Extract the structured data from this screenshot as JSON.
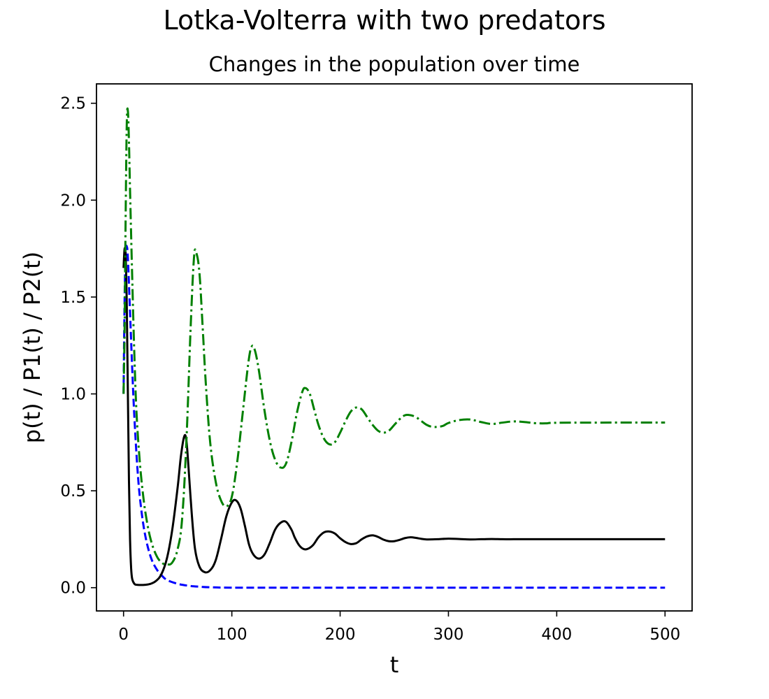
{
  "chart_data": {
    "type": "line",
    "suptitle": "Lotka-Volterra with two predators",
    "title": "Changes in the population over time",
    "xlabel": "t",
    "ylabel": "p(t) / P1(t) / P2(t)",
    "xlim": [
      -25,
      525
    ],
    "ylim": [
      -0.12,
      2.6
    ],
    "xticks": [
      0,
      100,
      200,
      300,
      400,
      500
    ],
    "yticks": [
      0.0,
      0.5,
      1.0,
      1.5,
      2.0,
      2.5
    ],
    "xtick_labels": [
      "0",
      "100",
      "200",
      "300",
      "400",
      "500"
    ],
    "ytick_labels": [
      "0.0",
      "0.5",
      "1.0",
      "1.5",
      "2.0",
      "2.5"
    ],
    "legend": "none",
    "grid": false,
    "series": [
      {
        "color": "#0000ff",
        "linestyle": "dashed",
        "x": [
          0,
          1,
          2,
          3,
          4,
          6,
          8,
          10,
          13,
          16,
          20,
          25,
          30,
          35,
          40,
          50,
          60,
          70,
          80,
          100,
          150,
          200,
          300,
          400,
          500
        ],
        "y": [
          1.0,
          1.5,
          1.73,
          1.76,
          1.7,
          1.42,
          1.13,
          0.88,
          0.6,
          0.42,
          0.27,
          0.16,
          0.1,
          0.065,
          0.04,
          0.02,
          0.01,
          0.005,
          0.002,
          0.0,
          0.0,
          0.0,
          0.0,
          0.0,
          0.0
        ]
      },
      {
        "color": "#000000",
        "linestyle": "solid",
        "x": [
          0,
          1,
          2,
          3,
          4,
          5,
          6,
          7,
          8,
          10,
          12,
          15,
          20,
          25,
          30,
          35,
          40,
          45,
          50,
          53,
          56,
          58,
          60,
          63,
          66,
          70,
          75,
          80,
          85,
          90,
          95,
          100,
          104,
          108,
          112,
          116,
          120,
          125,
          130,
          135,
          140,
          145,
          150,
          155,
          158,
          162,
          166,
          170,
          175,
          180,
          185,
          190,
          195,
          200,
          205,
          210,
          215,
          220,
          225,
          230,
          235,
          240,
          245,
          250,
          255,
          260,
          265,
          270,
          275,
          280,
          290,
          300,
          310,
          320,
          330,
          340,
          350,
          360,
          370,
          380,
          390,
          400,
          450,
          500
        ],
        "y": [
          1.65,
          1.75,
          1.7,
          1.45,
          1.0,
          0.55,
          0.25,
          0.1,
          0.045,
          0.02,
          0.015,
          0.014,
          0.015,
          0.02,
          0.035,
          0.07,
          0.15,
          0.3,
          0.52,
          0.68,
          0.78,
          0.76,
          0.62,
          0.38,
          0.2,
          0.11,
          0.08,
          0.09,
          0.14,
          0.25,
          0.37,
          0.44,
          0.45,
          0.41,
          0.32,
          0.22,
          0.17,
          0.15,
          0.17,
          0.23,
          0.3,
          0.335,
          0.34,
          0.3,
          0.26,
          0.22,
          0.2,
          0.2,
          0.22,
          0.26,
          0.285,
          0.29,
          0.28,
          0.255,
          0.235,
          0.225,
          0.23,
          0.25,
          0.265,
          0.27,
          0.262,
          0.248,
          0.24,
          0.24,
          0.247,
          0.256,
          0.26,
          0.257,
          0.252,
          0.249,
          0.25,
          0.253,
          0.251,
          0.249,
          0.25,
          0.251,
          0.25,
          0.25,
          0.25,
          0.25,
          0.25,
          0.25,
          0.25,
          0.25
        ]
      },
      {
        "color": "#008000",
        "linestyle": "dashdot",
        "x": [
          0,
          1,
          2,
          3,
          4,
          5,
          6,
          8,
          10,
          12,
          15,
          18,
          21,
          25,
          30,
          35,
          40,
          45,
          50,
          54,
          58,
          62,
          65,
          67,
          70,
          73,
          76,
          80,
          85,
          90,
          95,
          100,
          105,
          110,
          115,
          118,
          121,
          125,
          130,
          135,
          140,
          145,
          150,
          155,
          160,
          165,
          168,
          172,
          176,
          180,
          185,
          190,
          195,
          200,
          205,
          210,
          215,
          220,
          225,
          230,
          235,
          240,
          245,
          250,
          255,
          260,
          265,
          270,
          275,
          280,
          285,
          290,
          295,
          300,
          310,
          320,
          330,
          340,
          350,
          360,
          370,
          380,
          390,
          400,
          450,
          500
        ],
        "y": [
          1.0,
          1.35,
          1.95,
          2.4,
          2.46,
          2.3,
          2.05,
          1.6,
          1.2,
          0.9,
          0.65,
          0.48,
          0.36,
          0.25,
          0.17,
          0.13,
          0.12,
          0.13,
          0.2,
          0.35,
          0.75,
          1.35,
          1.7,
          1.73,
          1.63,
          1.35,
          1.05,
          0.75,
          0.55,
          0.45,
          0.42,
          0.47,
          0.65,
          0.9,
          1.15,
          1.24,
          1.23,
          1.12,
          0.92,
          0.76,
          0.66,
          0.62,
          0.64,
          0.75,
          0.9,
          1.01,
          1.03,
          1.0,
          0.92,
          0.84,
          0.77,
          0.74,
          0.75,
          0.8,
          0.86,
          0.91,
          0.93,
          0.92,
          0.88,
          0.84,
          0.81,
          0.8,
          0.81,
          0.84,
          0.87,
          0.89,
          0.89,
          0.88,
          0.86,
          0.84,
          0.83,
          0.83,
          0.835,
          0.85,
          0.865,
          0.868,
          0.855,
          0.845,
          0.852,
          0.858,
          0.855,
          0.849,
          0.848,
          0.851,
          0.852,
          0.852
        ]
      }
    ]
  }
}
